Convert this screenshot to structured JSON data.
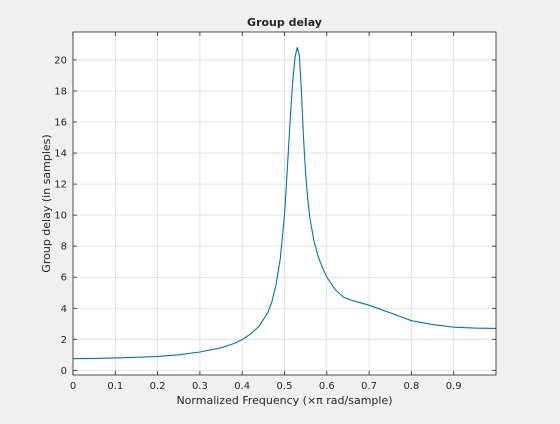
{
  "chart_data": {
    "type": "line",
    "title": "Group delay",
    "xlabel": "Normalized Frequency  (×π rad/sample)",
    "ylabel": "Group delay (in samples)",
    "xlim": [
      0,
      1
    ],
    "ylim": [
      -0.3,
      21.8
    ],
    "x_ticks": [
      0,
      0.1,
      0.2,
      0.3,
      0.4,
      0.5,
      0.6,
      0.7,
      0.8,
      0.9
    ],
    "x_tick_labels": [
      "0",
      "0.1",
      "0.2",
      "0.3",
      "0.4",
      "0.5",
      "0.6",
      "0.7",
      "0.8",
      "0.9"
    ],
    "y_ticks": [
      0,
      2,
      4,
      6,
      8,
      10,
      12,
      14,
      16,
      18,
      20
    ],
    "y_tick_labels": [
      "0",
      "2",
      "4",
      "6",
      "8",
      "10",
      "12",
      "14",
      "16",
      "18",
      "20"
    ],
    "grid": true,
    "colors": {
      "line": "#0072bd",
      "axes_bg": "#ffffff",
      "figure_bg": "#f0f0f0",
      "grid": "#dcdcdc",
      "axis": "#262626"
    },
    "series": [
      {
        "x": [
          0,
          0.05,
          0.1,
          0.15,
          0.2,
          0.25,
          0.3,
          0.35,
          0.38,
          0.4,
          0.42,
          0.44,
          0.46,
          0.47,
          0.48,
          0.49,
          0.5,
          0.505,
          0.51,
          0.515,
          0.52,
          0.525,
          0.53,
          0.535,
          0.54,
          0.545,
          0.55,
          0.555,
          0.56,
          0.57,
          0.58,
          0.59,
          0.6,
          0.62,
          0.64,
          0.66,
          0.68,
          0.7,
          0.75,
          0.8,
          0.85,
          0.9,
          0.95,
          1.0
        ],
        "y": [
          0.75,
          0.77,
          0.8,
          0.84,
          0.9,
          1.0,
          1.18,
          1.45,
          1.72,
          1.98,
          2.35,
          2.85,
          3.7,
          4.4,
          5.5,
          7.2,
          10.0,
          12.2,
          14.5,
          16.8,
          18.8,
          20.2,
          20.8,
          20.3,
          18.0,
          15.0,
          12.7,
          11.0,
          9.8,
          8.3,
          7.3,
          6.6,
          6.0,
          5.2,
          4.7,
          4.5,
          4.35,
          4.2,
          3.7,
          3.2,
          2.95,
          2.78,
          2.72,
          2.7
        ]
      }
    ]
  }
}
